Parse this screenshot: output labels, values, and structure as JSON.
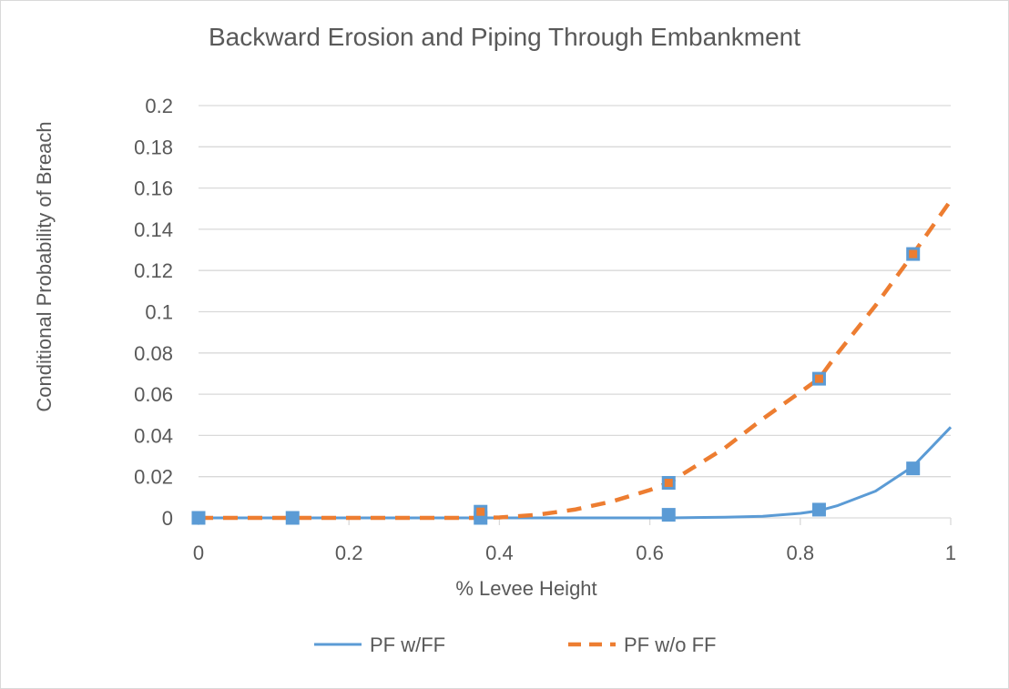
{
  "chart_data": {
    "type": "line",
    "title": "Backward Erosion and Piping Through Embankment",
    "xlabel": "% Levee Height",
    "ylabel": "Conditional Probability of Breach",
    "xlim": [
      0,
      1
    ],
    "ylim": [
      0,
      0.2
    ],
    "x_ticks": [
      "0",
      "0.2",
      "0.4",
      "0.6",
      "0.8",
      "1"
    ],
    "y_ticks": [
      "0",
      "0.02",
      "0.04",
      "0.06",
      "0.08",
      "0.1",
      "0.12",
      "0.14",
      "0.16",
      "0.18",
      "0.2"
    ],
    "grid": "horizontal",
    "legend_position": "bottom",
    "series": [
      {
        "name": "PF w/FF",
        "style": "solid",
        "color": "#5b9bd5",
        "curve_x": [
          0,
          0.375,
          0.625,
          0.7,
          0.75,
          0.8,
          0.825,
          0.85,
          0.9,
          0.95,
          1.0
        ],
        "curve_y": [
          0,
          0,
          0,
          0.0003,
          0.0008,
          0.0022,
          0.0035,
          0.006,
          0.013,
          0.025,
          0.044
        ],
        "markers_x": [
          0,
          0.125,
          0.375,
          0.625,
          0.825,
          0.95
        ],
        "markers_y": [
          0,
          0,
          0,
          0.0015,
          0.004,
          0.024
        ]
      },
      {
        "name": "PF w/o FF",
        "style": "dashed",
        "color": "#ed7d31",
        "curve_x": [
          0,
          0.375,
          0.4,
          0.45,
          0.5,
          0.55,
          0.6,
          0.625,
          0.7,
          0.75,
          0.8,
          0.825,
          0.85,
          0.9,
          0.95,
          1.0
        ],
        "curve_y": [
          0,
          0,
          0.0002,
          0.0015,
          0.004,
          0.008,
          0.0135,
          0.017,
          0.034,
          0.048,
          0.061,
          0.0675,
          0.08,
          0.103,
          0.128,
          0.154
        ],
        "markers_x": [
          0.375,
          0.625,
          0.825,
          0.95
        ],
        "markers_y": [
          0.003,
          0.017,
          0.0675,
          0.128
        ]
      }
    ]
  },
  "colors": {
    "marker_fill": "#5b9bd5",
    "gridline": "#d9d9d9",
    "text": "#595959"
  }
}
